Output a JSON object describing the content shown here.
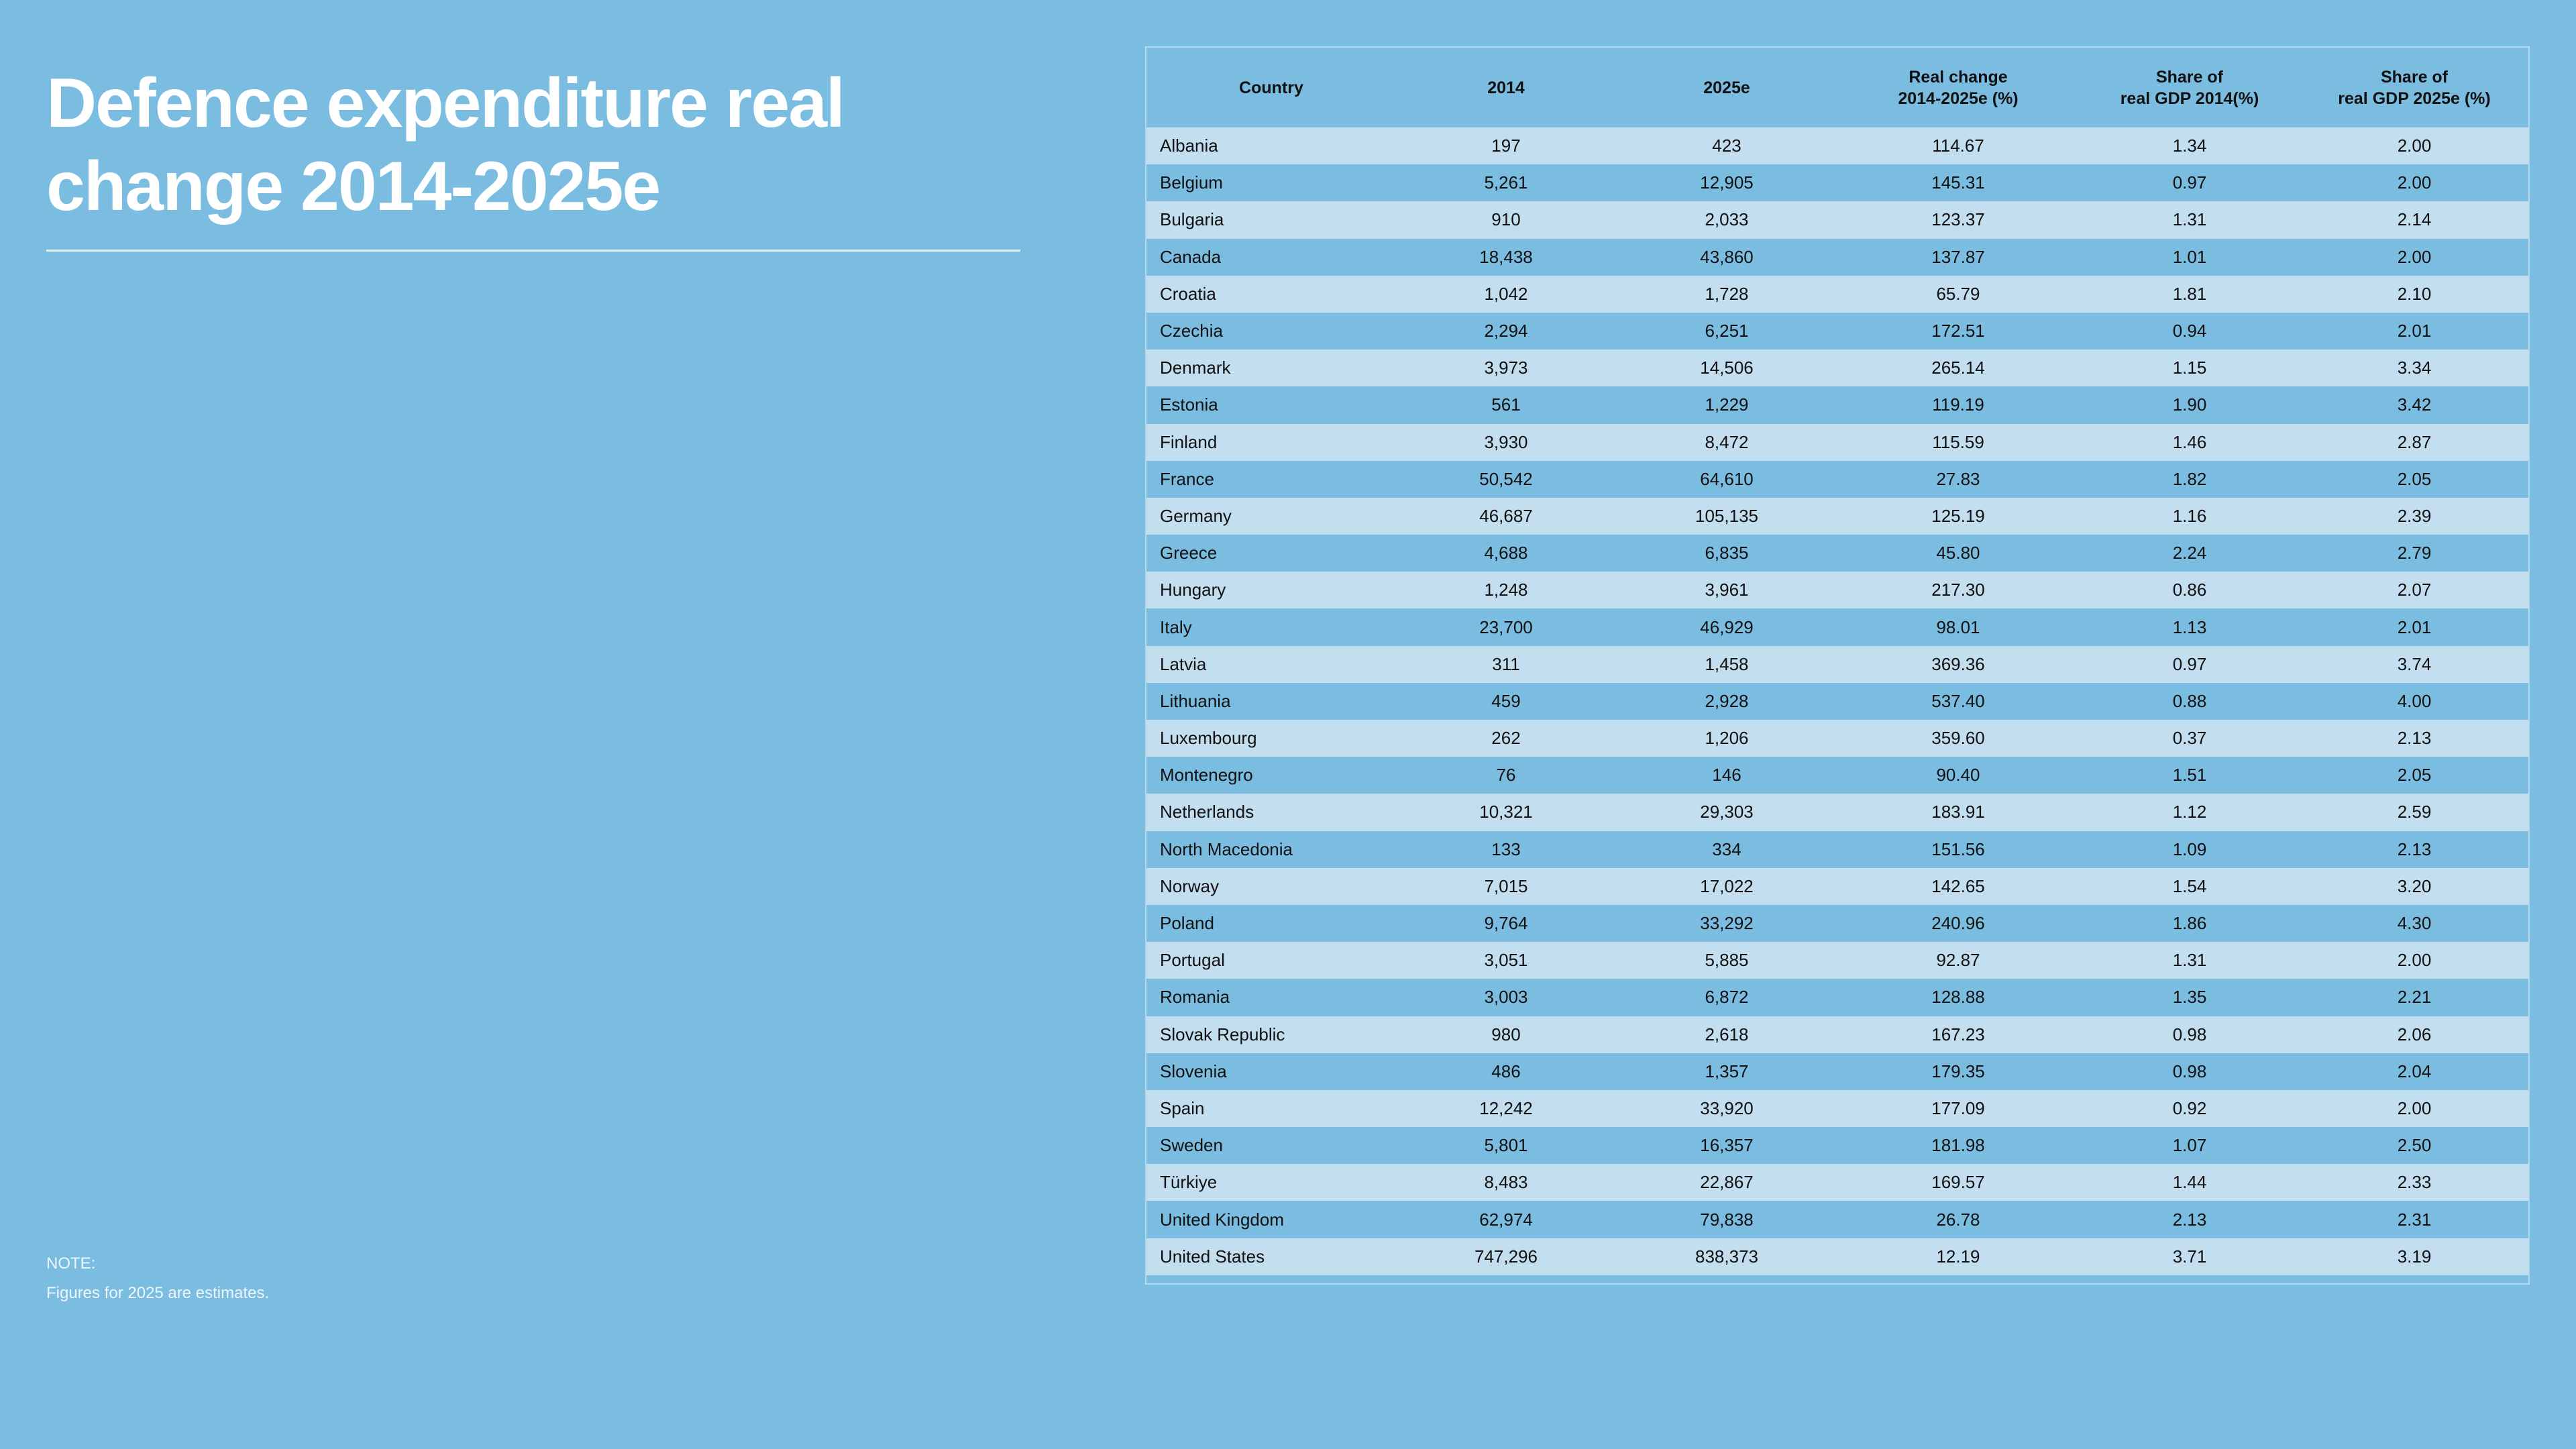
{
  "header": {
    "title": "Defence expenditure real change 2014-2025e"
  },
  "table": {
    "columns": [
      "Country",
      "2014",
      "2025e",
      "Real change\n2014-2025e (%)",
      "Share of\nreal GDP 2014(%)",
      "Share of\nreal GDP 2025e (%)"
    ],
    "rows": [
      [
        "Albania",
        "197",
        "423",
        "114.67",
        "1.34",
        "2.00"
      ],
      [
        "Belgium",
        "5,261",
        "12,905",
        "145.31",
        "0.97",
        "2.00"
      ],
      [
        "Bulgaria",
        "910",
        "2,033",
        "123.37",
        "1.31",
        "2.14"
      ],
      [
        "Canada",
        "18,438",
        "43,860",
        "137.87",
        "1.01",
        "2.00"
      ],
      [
        "Croatia",
        "1,042",
        "1,728",
        "65.79",
        "1.81",
        "2.10"
      ],
      [
        "Czechia",
        "2,294",
        "6,251",
        "172.51",
        "0.94",
        "2.01"
      ],
      [
        "Denmark",
        "3,973",
        "14,506",
        "265.14",
        "1.15",
        "3.34"
      ],
      [
        "Estonia",
        "561",
        "1,229",
        "119.19",
        "1.90",
        "3.42"
      ],
      [
        "Finland",
        "3,930",
        "8,472",
        "115.59",
        "1.46",
        "2.87"
      ],
      [
        "France",
        "50,542",
        "64,610",
        "27.83",
        "1.82",
        "2.05"
      ],
      [
        "Germany",
        "46,687",
        "105,135",
        "125.19",
        "1.16",
        "2.39"
      ],
      [
        "Greece",
        "4,688",
        "6,835",
        "45.80",
        "2.24",
        "2.79"
      ],
      [
        "Hungary",
        "1,248",
        "3,961",
        "217.30",
        "0.86",
        "2.07"
      ],
      [
        "Italy",
        "23,700",
        "46,929",
        "98.01",
        "1.13",
        "2.01"
      ],
      [
        "Latvia",
        "311",
        "1,458",
        "369.36",
        "0.97",
        "3.74"
      ],
      [
        "Lithuania",
        "459",
        "2,928",
        "537.40",
        "0.88",
        "4.00"
      ],
      [
        "Luxembourg",
        "262",
        "1,206",
        "359.60",
        "0.37",
        "2.13"
      ],
      [
        "Montenegro",
        "76",
        "146",
        "90.40",
        "1.51",
        "2.05"
      ],
      [
        "Netherlands",
        "10,321",
        "29,303",
        "183.91",
        "1.12",
        "2.59"
      ],
      [
        "North Macedonia",
        "133",
        "334",
        "151.56",
        "1.09",
        "2.13"
      ],
      [
        "Norway",
        "7,015",
        "17,022",
        "142.65",
        "1.54",
        "3.20"
      ],
      [
        "Poland",
        "9,764",
        "33,292",
        "240.96",
        "1.86",
        "4.30"
      ],
      [
        "Portugal",
        "3,051",
        "5,885",
        "92.87",
        "1.31",
        "2.00"
      ],
      [
        "Romania",
        "3,003",
        "6,872",
        "128.88",
        "1.35",
        "2.21"
      ],
      [
        "Slovak Republic",
        "980",
        "2,618",
        "167.23",
        "0.98",
        "2.06"
      ],
      [
        "Slovenia",
        "486",
        "1,357",
        "179.35",
        "0.98",
        "2.04"
      ],
      [
        "Spain",
        "12,242",
        "33,920",
        "177.09",
        "0.92",
        "2.00"
      ],
      [
        "Sweden",
        "5,801",
        "16,357",
        "181.98",
        "1.07",
        "2.50"
      ],
      [
        "Türkiye",
        "8,483",
        "22,867",
        "169.57",
        "1.44",
        "2.33"
      ],
      [
        "United Kingdom",
        "62,974",
        "79,838",
        "26.78",
        "2.13",
        "2.31"
      ],
      [
        "United States",
        "747,296",
        "838,373",
        "12.19",
        "3.71",
        "3.19"
      ]
    ]
  },
  "note": {
    "label": "NOTE:",
    "text": "Figures for 2025 are estimates."
  }
}
